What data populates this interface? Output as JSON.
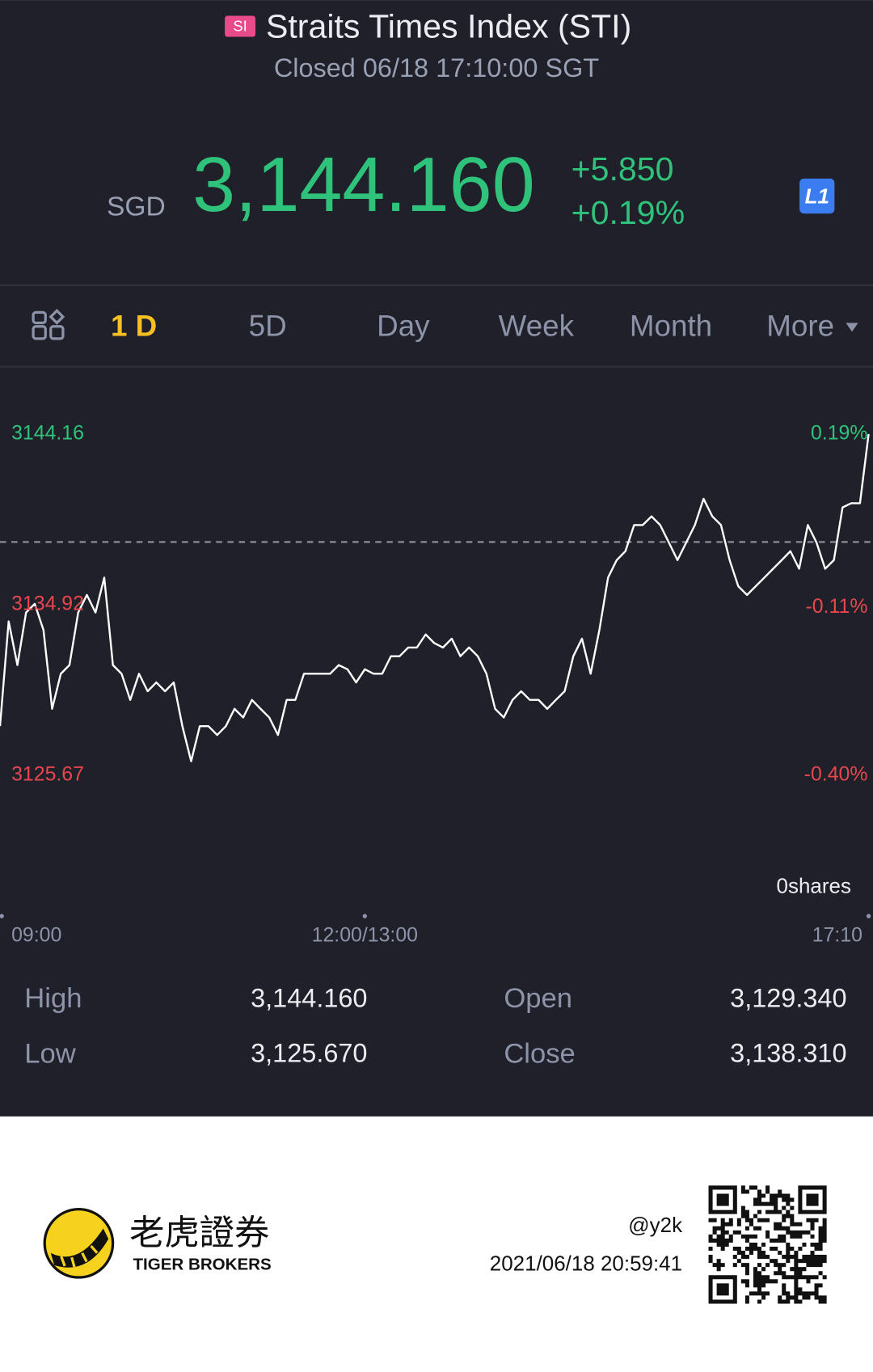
{
  "header": {
    "badge": "SI",
    "title": "Straits Times Index (STI)",
    "status": "Closed 06/18 17:10:00 SGT"
  },
  "quote": {
    "currency": "SGD",
    "price": "3,144.160",
    "change": "+5.850",
    "change_pct": "+0.19%",
    "level": "L1"
  },
  "tabs": [
    "1 D",
    "5D",
    "Day",
    "Week",
    "Month",
    "More"
  ],
  "active_tab": 0,
  "chart_data": {
    "type": "line",
    "color": "#ffffff",
    "values": [
      3128.33,
      3134.01,
      3131.64,
      3134.49,
      3134.96,
      3133.54,
      3129.27,
      3131.17,
      3131.64,
      3134.49,
      3135.44,
      3134.49,
      3136.38,
      3131.64,
      3131.17,
      3129.75,
      3131.17,
      3130.22,
      3130.7,
      3130.22,
      3130.7,
      3128.33,
      3126.43,
      3128.33,
      3128.33,
      3127.85,
      3128.33,
      3129.27,
      3128.8,
      3129.75,
      3129.27,
      3128.8,
      3127.85,
      3129.75,
      3129.75,
      3131.17,
      3131.17,
      3131.17,
      3131.17,
      3131.64,
      3131.41,
      3130.7,
      3131.41,
      3131.17,
      3131.17,
      3132.12,
      3132.12,
      3132.59,
      3132.59,
      3133.3,
      3132.83,
      3132.59,
      3133.07,
      3132.12,
      3132.59,
      3132.12,
      3131.17,
      3129.27,
      3128.8,
      3129.75,
      3130.22,
      3129.75,
      3129.75,
      3129.27,
      3129.75,
      3130.22,
      3132.12,
      3133.07,
      3131.17,
      3133.54,
      3136.38,
      3137.33,
      3137.81,
      3139.23,
      3139.23,
      3139.7,
      3139.23,
      3138.28,
      3137.33,
      3138.28,
      3139.23,
      3140.65,
      3139.7,
      3139.23,
      3137.33,
      3135.91,
      3135.44,
      3135.91,
      3136.38,
      3136.86,
      3137.33,
      3137.81,
      3136.86,
      3139.23,
      3138.28,
      3136.86,
      3137.33,
      3140.18,
      3140.41,
      3140.41,
      3144.16
    ],
    "xlim": [
      0,
      100
    ],
    "xticks": [
      {
        "value": 0,
        "label": "09:00"
      },
      {
        "value": 42,
        "label": "12:00/13:00"
      },
      {
        "value": 100,
        "label": "17:10"
      }
    ],
    "ylim": [
      3125.67,
      3144.16
    ],
    "yticks": [
      3144.16,
      3134.92,
      3125.67
    ],
    "y2lim": [
      -0.4,
      0.19
    ],
    "y2ticks": [
      {
        "value": 0.19,
        "label": "0.19%"
      },
      {
        "value": -0.11,
        "label": "-0.11%"
      },
      {
        "value": -0.4,
        "label": "-0.40%"
      }
    ],
    "reference": 3138.31,
    "volume_label": "0shares"
  },
  "stats": {
    "rows": [
      [
        "High",
        "3,144.160",
        "Open",
        "3,129.340"
      ],
      [
        "Low",
        "3,125.670",
        "Close",
        "3,138.310"
      ]
    ]
  },
  "footer": {
    "brand_cn": "老虎證券",
    "brand_en": "TIGER BROKERS",
    "user": "@y2k",
    "timestamp": "2021/06/18 20:59:41"
  }
}
